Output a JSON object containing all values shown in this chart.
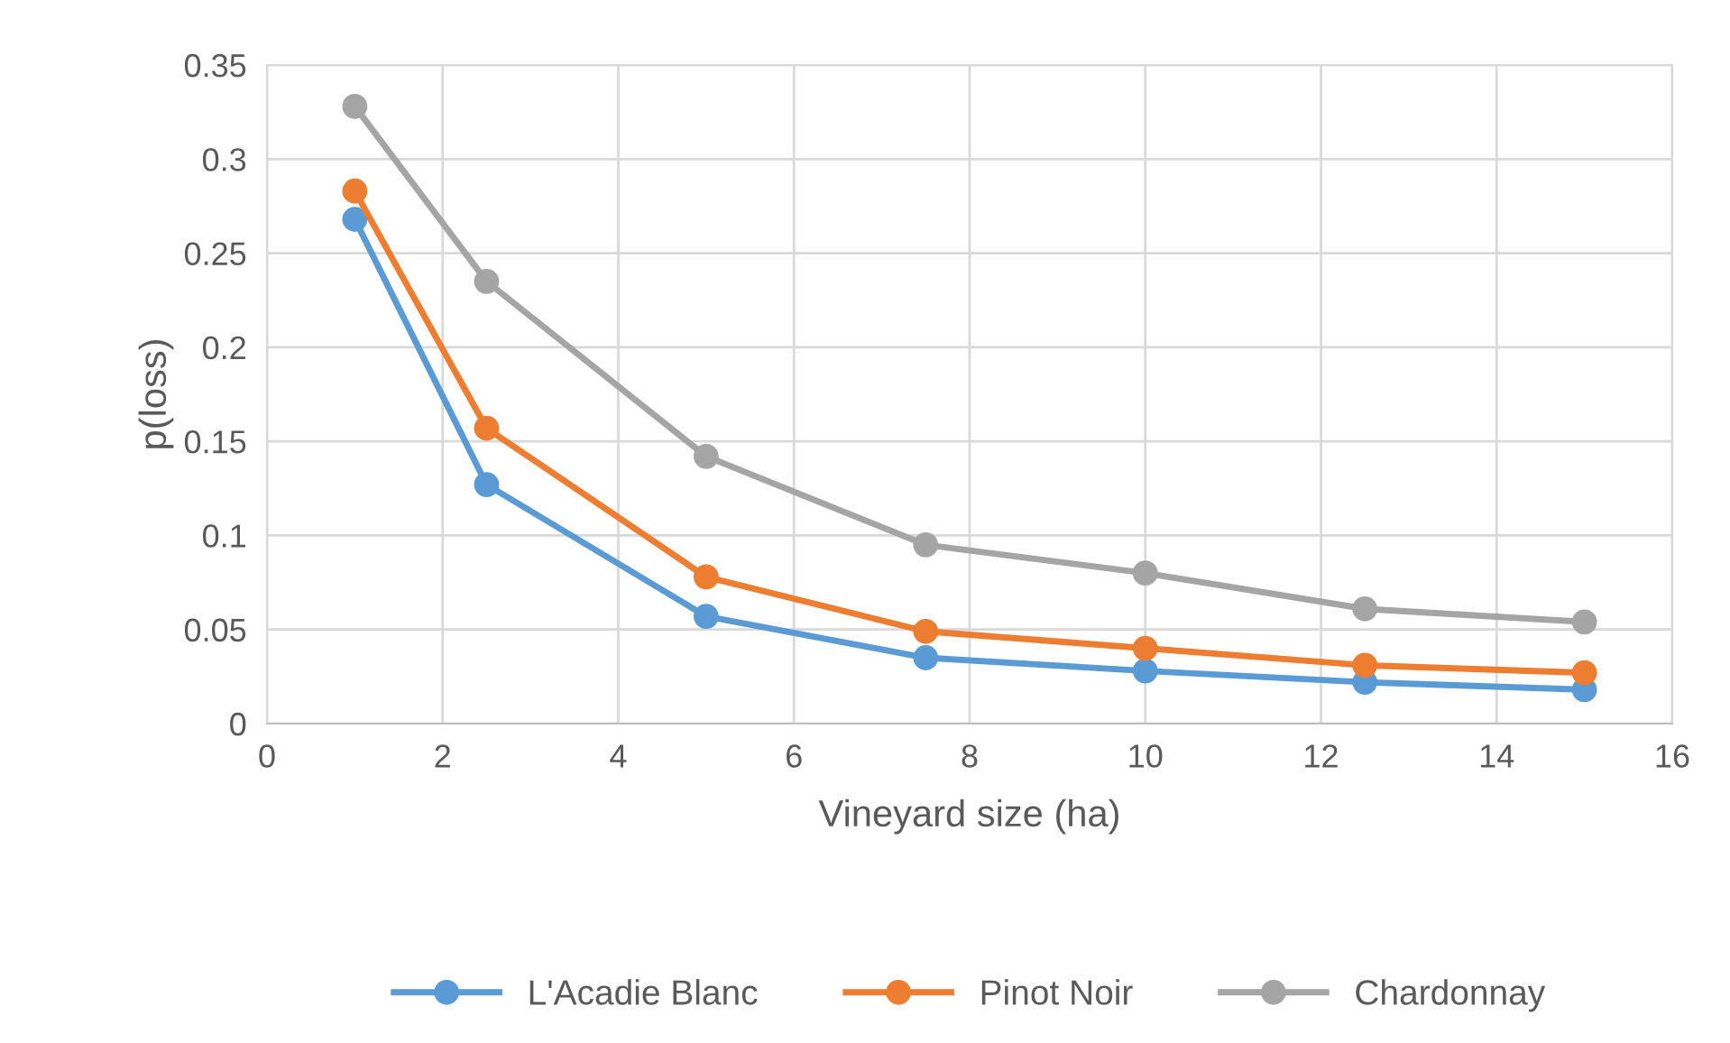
{
  "chart_data": {
    "type": "line",
    "xlabel": "Vineyard size (ha)",
    "ylabel": "p(loss)",
    "x": [
      1,
      2.5,
      5,
      7.5,
      10,
      12.5,
      15
    ],
    "series": [
      {
        "name": "L'Acadie Blanc",
        "color": "#5b9bd5",
        "values": [
          0.268,
          0.127,
          0.057,
          0.035,
          0.028,
          0.022,
          0.018
        ]
      },
      {
        "name": "Pinot Noir",
        "color": "#ed7d31",
        "values": [
          0.283,
          0.157,
          0.078,
          0.049,
          0.04,
          0.031,
          0.027
        ]
      },
      {
        "name": "Chardonnay",
        "color": "#a5a5a5",
        "values": [
          0.328,
          0.235,
          0.142,
          0.095,
          0.08,
          0.061,
          0.054
        ]
      }
    ],
    "xlim": [
      0,
      16
    ],
    "xticks": [
      0,
      2,
      4,
      6,
      8,
      10,
      12,
      14,
      16
    ],
    "ylim": [
      0,
      0.35
    ],
    "yticks": [
      {
        "value": 0,
        "label": "0"
      },
      0.05,
      0.1,
      0.15,
      0.2,
      0.25,
      0.3,
      0.35
    ],
    "grid": true,
    "legend": "bottom",
    "marker": "circle",
    "line_style": "solid"
  }
}
